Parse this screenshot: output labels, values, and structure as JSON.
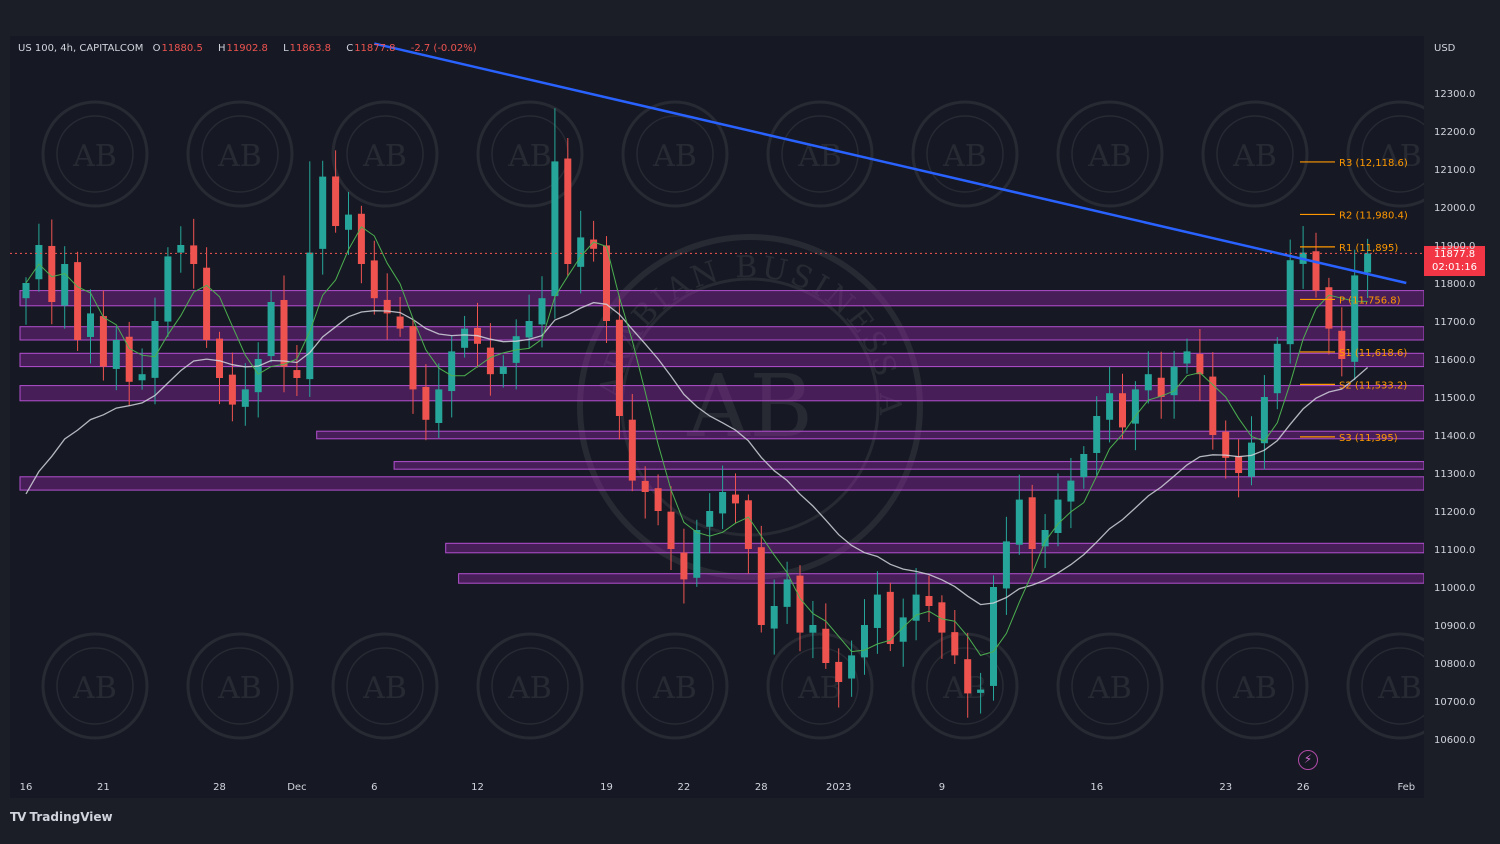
{
  "header": {
    "symbol": "US 100, 4h, CAPITALCOM",
    "o_label": "O",
    "o_value": "11880.5",
    "h_label": "H",
    "h_value": "11902.8",
    "l_label": "L",
    "l_value": "11863.8",
    "c_label": "C",
    "c_value": "11877.8",
    "change": "-2.7 (-0.02%)"
  },
  "currency": "USD",
  "watermark": {
    "text": "ARABIAN BUSINESS ACADEMY",
    "monogram": "AB"
  },
  "price_tag": {
    "price": "11877.8",
    "countdown": "02:01:16"
  },
  "branding": {
    "logo_mark": "TV",
    "name": "TradingView"
  },
  "colors": {
    "background": "#161923",
    "up_candle": "#26a69a",
    "down_candle": "#ef5350",
    "trendline": "#2962ff",
    "zone": "#9c27b0",
    "pivot": "#ff9800",
    "ma_fast": "#4caf50",
    "ma_slow": "#d1d4dc",
    "price_tag": "#f23645"
  },
  "chart_data": {
    "type": "candlestick",
    "timeframe": "4h",
    "y_axis": {
      "ylim": [
        10550,
        12400
      ],
      "ticks": [
        10600,
        10700,
        10800,
        10900,
        11000,
        11100,
        11200,
        11300,
        11400,
        11500,
        11600,
        11700,
        11800,
        11900,
        12000,
        12100,
        12200,
        12300
      ],
      "tick_labels": [
        "10600.0",
        "10700.0",
        "10800.0",
        "10900.0",
        "11000.0",
        "11100.0",
        "11200.0",
        "11300.0",
        "11400.0",
        "11500.0",
        "11600.0",
        "11700.0",
        "11800.0",
        "11900.0",
        "12000.0",
        "12100.0",
        "12200.0",
        "12300.0"
      ]
    },
    "x_axis": {
      "labels": [
        "16",
        "21",
        "28",
        "Dec",
        "6",
        "12",
        "19",
        "22",
        "28",
        "2023",
        "9",
        "16",
        "23",
        "26",
        "Feb"
      ],
      "label_index": [
        0,
        6,
        15,
        21,
        27,
        35,
        45,
        51,
        57,
        63,
        71,
        83,
        93,
        99,
        107
      ]
    },
    "path": [
      11800,
      11900,
      11750,
      11850,
      11650,
      11720,
      11580,
      11650,
      11540,
      11560,
      11700,
      11870,
      11900,
      11850,
      11650,
      11550,
      11480,
      11520,
      11600,
      11750,
      11580,
      11550,
      11880,
      12080,
      11950,
      11980,
      11850,
      11760,
      11720,
      11680,
      11520,
      11440,
      11520,
      11620,
      11680,
      11640,
      11560,
      11580,
      11660,
      11700,
      11760,
      12120,
      11850,
      11920,
      11890,
      11700,
      11450,
      11280,
      11250,
      11200,
      11100,
      11020,
      11150,
      11200,
      11250,
      11220,
      11100,
      10900,
      10950,
      11020,
      10880,
      10900,
      10800,
      10750,
      10820,
      10900,
      10980,
      10850,
      10920,
      10980,
      10950,
      10880,
      10820,
      10720,
      10730,
      11000,
      11120,
      11230,
      11100,
      11150,
      11230,
      11280,
      11350,
      11450,
      11510,
      11420,
      11520,
      11560,
      11500,
      11580,
      11620,
      11560,
      11400,
      11340,
      11300,
      11380,
      11500,
      11640,
      11860,
      11880,
      11780,
      11680,
      11600,
      11820,
      11877.8
    ],
    "trendline": {
      "from": {
        "index": 27,
        "price": 12430
      },
      "to": {
        "index": 107,
        "price": 11800
      }
    },
    "zones": [
      {
        "from_index": 0,
        "price_low": 11740,
        "price_high": 11780
      },
      {
        "from_index": 0,
        "price_low": 11650,
        "price_high": 11685
      },
      {
        "from_index": 0,
        "price_low": 11580,
        "price_high": 11615
      },
      {
        "from_index": 0,
        "price_low": 11490,
        "price_high": 11530
      },
      {
        "from_index": 23,
        "price_low": 11390,
        "price_high": 11410
      },
      {
        "from_index": 29,
        "price_low": 11310,
        "price_high": 11330
      },
      {
        "from_index": 0,
        "price_low": 11255,
        "price_high": 11290
      },
      {
        "from_index": 33,
        "price_low": 11090,
        "price_high": 11115
      },
      {
        "from_index": 34,
        "price_low": 11010,
        "price_high": 11035
      }
    ],
    "pivot_levels": [
      {
        "label": "R3 (12,118.6)",
        "price": 12118.6
      },
      {
        "label": "R2 (11,980.4)",
        "price": 11980.4
      },
      {
        "label": "R1 (11,895)",
        "price": 11895
      },
      {
        "label": "P (11,756.8)",
        "price": 11756.8
      },
      {
        "label": "S1 (11,618.6)",
        "price": 11618.6
      },
      {
        "label": "S2 (11,533.2)",
        "price": 11533.2
      },
      {
        "label": "S3 (11,395)",
        "price": 11395
      }
    ],
    "moving_averages": [
      {
        "kind": "fast",
        "period": 20
      },
      {
        "kind": "slow",
        "period": 100,
        "start_price": 11190
      }
    ],
    "last_price": 11877.8
  }
}
